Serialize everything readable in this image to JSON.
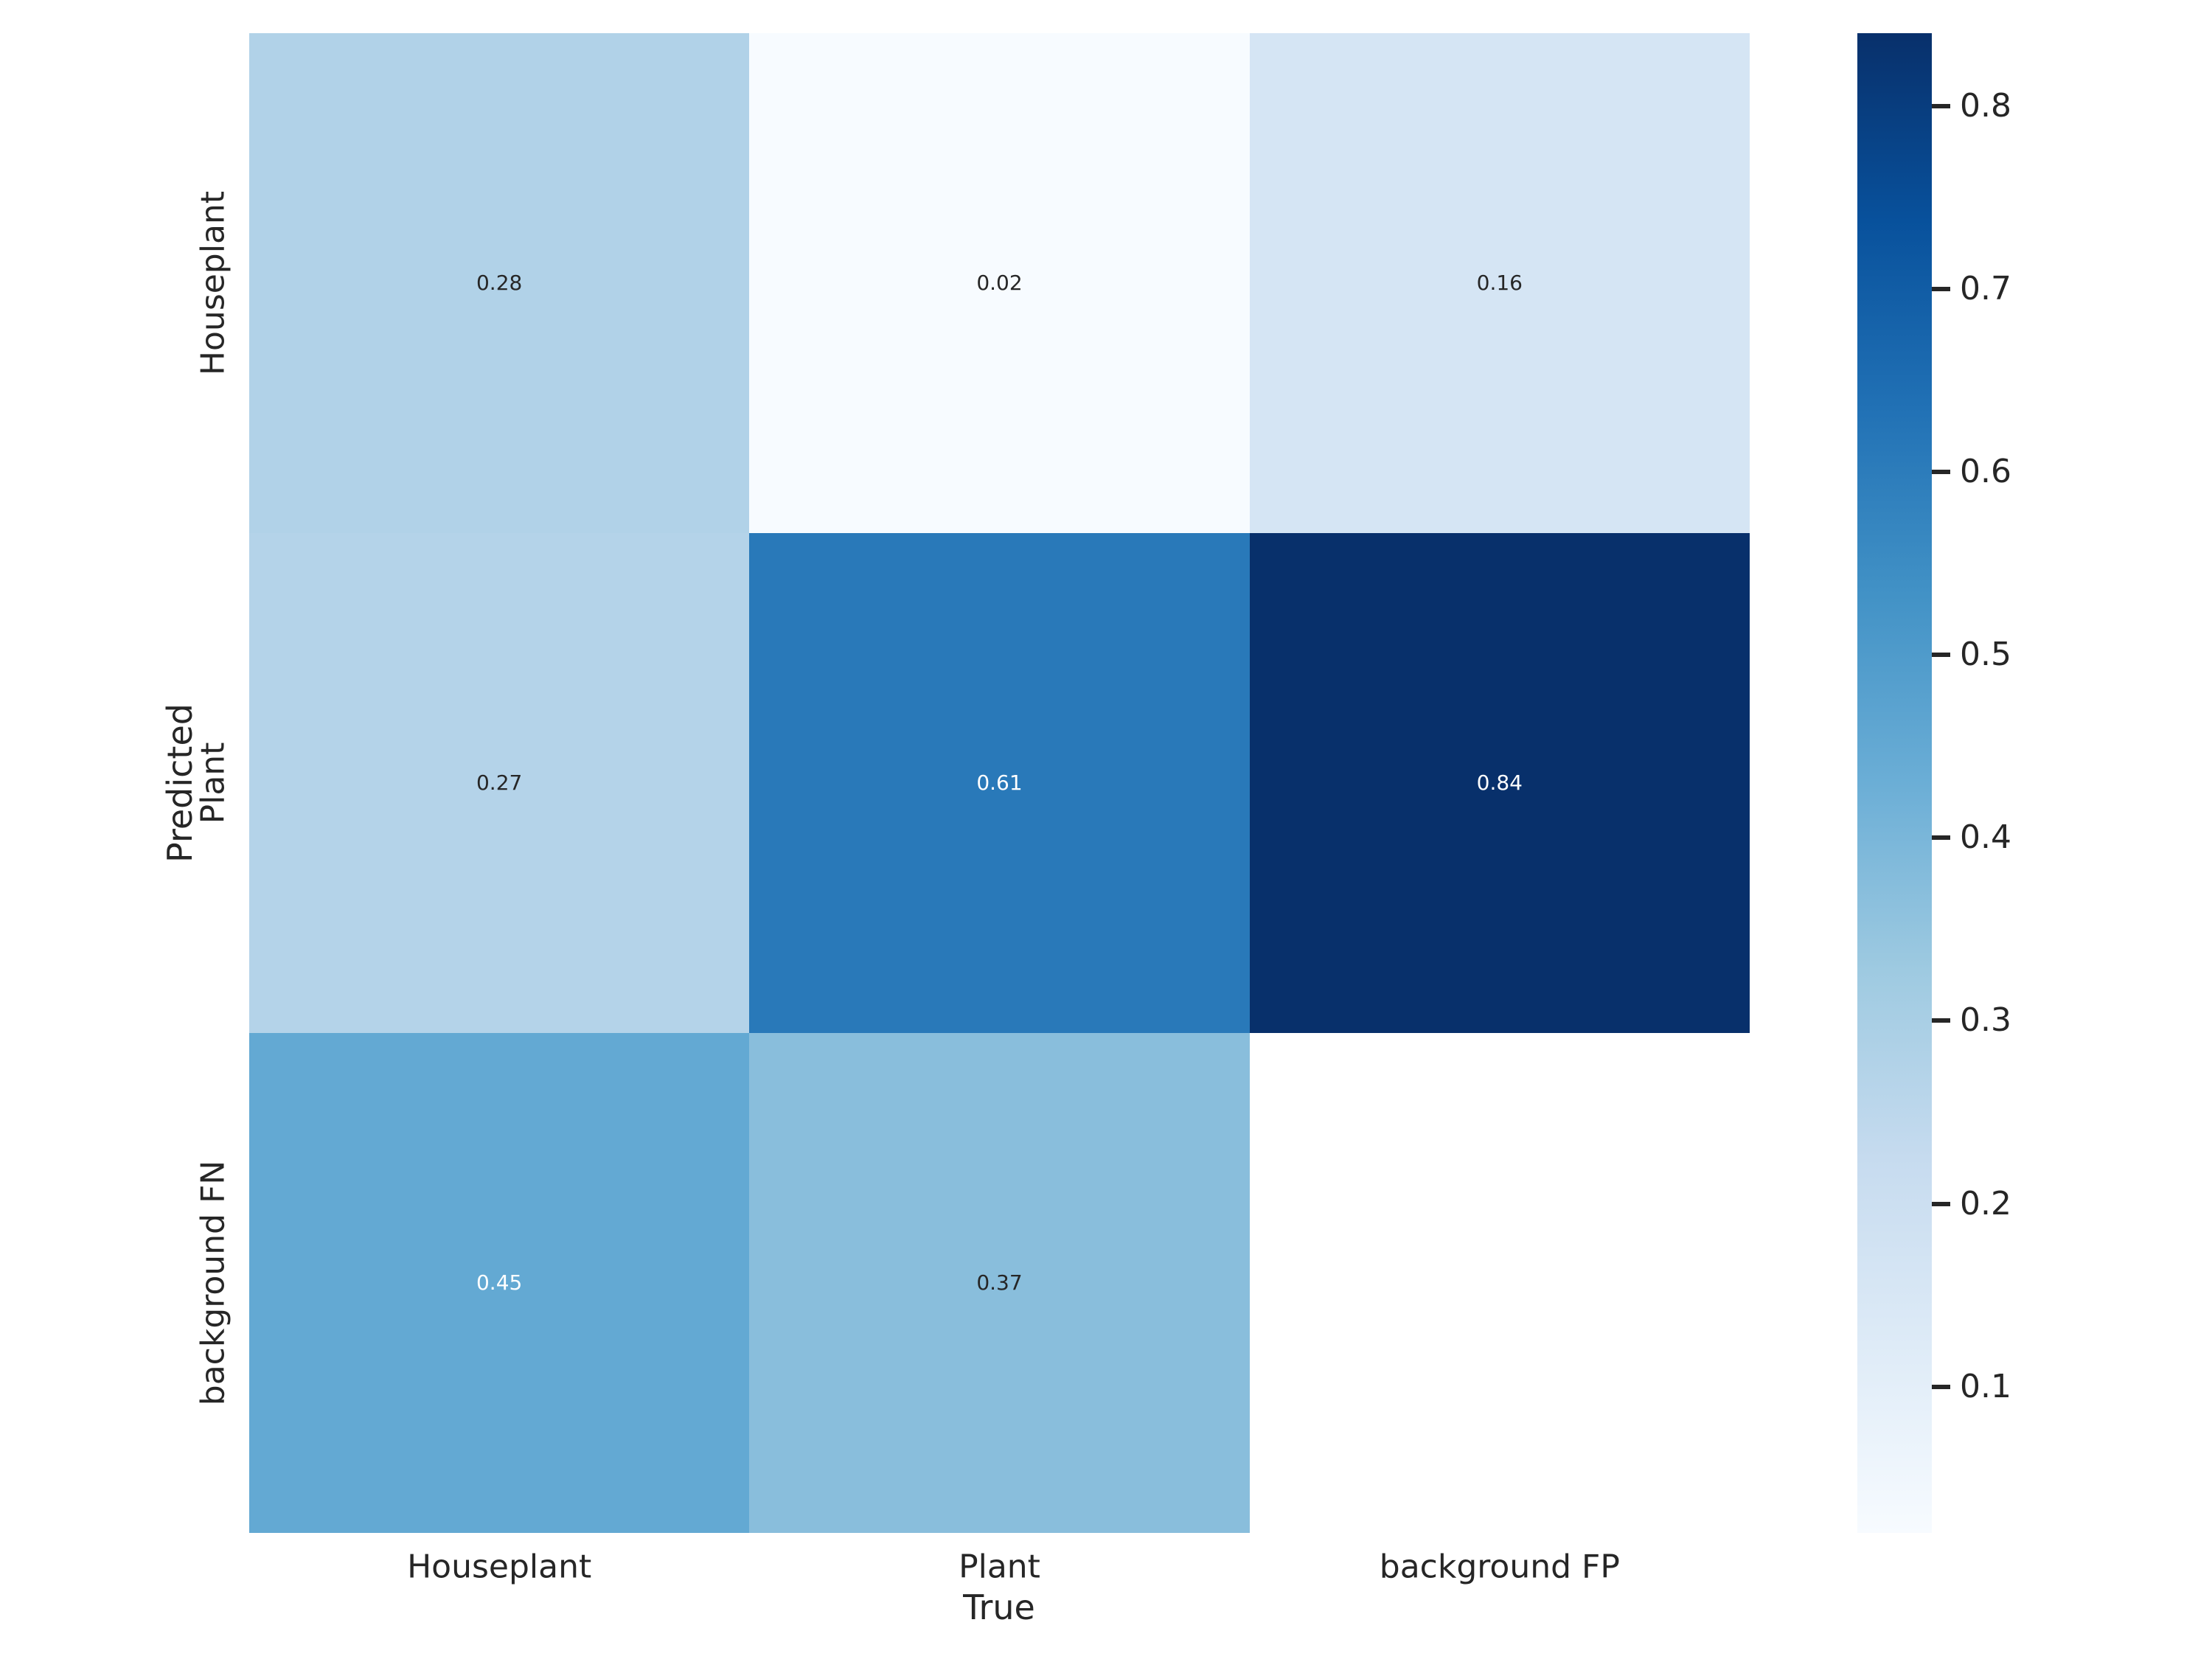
{
  "chart_data": {
    "type": "heatmap",
    "title": "",
    "xlabel": "True",
    "ylabel": "Predicted",
    "x_categories": [
      "Houseplant",
      "Plant",
      "background FP"
    ],
    "y_categories": [
      "Houseplant",
      "Plant",
      "background FN"
    ],
    "values": [
      [
        0.28,
        0.02,
        0.16
      ],
      [
        0.27,
        0.61,
        0.84
      ],
      [
        0.45,
        0.37,
        null
      ]
    ],
    "cell_labels": [
      [
        "0.28",
        "0.02",
        "0.16"
      ],
      [
        "0.27",
        "0.61",
        "0.84"
      ],
      [
        "0.45",
        "0.37",
        ""
      ]
    ],
    "cell_colors": [
      [
        "#b1d2e8",
        "#f7fbff",
        "#d5e5f4"
      ],
      [
        "#b4d3e9",
        "#2979b9",
        "#08306b"
      ],
      [
        "#63a9d3",
        "#89bedc",
        "#ffffff"
      ]
    ],
    "cell_text_colors": [
      [
        "#262626",
        "#262626",
        "#262626"
      ],
      [
        "#262626",
        "#ffffff",
        "#ffffff"
      ],
      [
        "#ffffff",
        "#262626",
        "#262626"
      ]
    ],
    "masked_cells": [
      [
        2,
        2
      ]
    ],
    "colormap": "Blues",
    "vmin": 0.02,
    "vmax": 0.84,
    "grid": false,
    "background_color": "#ffffff",
    "text_color": "#262626",
    "colorbar": {
      "position": "right",
      "ticks": [
        0.8,
        0.7,
        0.6,
        0.5,
        0.4,
        0.3,
        0.2,
        0.1
      ],
      "tick_labels": [
        "0.8",
        "0.7",
        "0.6",
        "0.5",
        "0.4",
        "0.3",
        "0.2",
        "0.1"
      ],
      "gradient_stops": [
        "#f7fbff",
        "#deebf7",
        "#c6dbef",
        "#9ecae1",
        "#6baed6",
        "#4292c6",
        "#2171b5",
        "#08519c",
        "#08306b"
      ]
    }
  }
}
